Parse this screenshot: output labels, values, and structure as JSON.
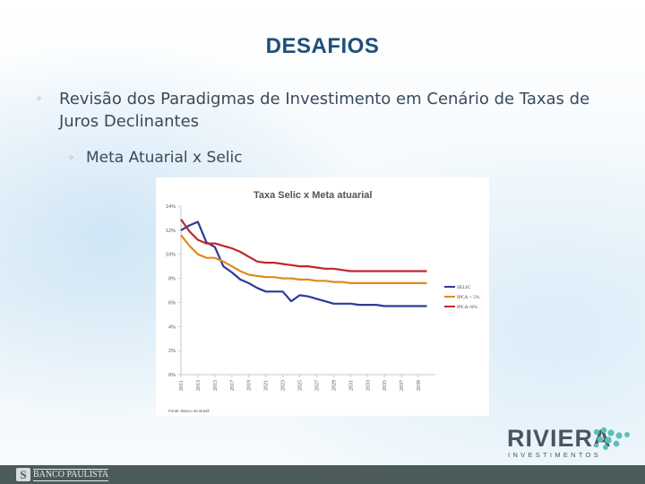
{
  "slide": {
    "title": "DESAFIOS",
    "bullet1": "Revisão dos Paradigmas de Investimento em Cenário de Taxas de Juros Declinantes",
    "bullet2": "Meta Atuarial x Selic",
    "bullet_symbol": "◦"
  },
  "logo": {
    "name": "RIVIERA",
    "sub": "INVESTIMENTOS"
  },
  "footer": {
    "bank_name": "BANCO PAULISTA",
    "mark": "S"
  },
  "colors": {
    "title": "#1f4e79",
    "selic": "#2b3a9a",
    "ipca5": "#e08a1e",
    "ipca6": "#c0282a",
    "dots": "#5fbfb5",
    "footer_bar": "#4b5a5a"
  },
  "chart_data": {
    "type": "line",
    "title": "Taxa Selic x Meta atuarial",
    "source": "Fonte: Banco do Brasil",
    "xlabel": "",
    "ylabel": "",
    "ylim": [
      0,
      14
    ],
    "xlim": [
      2011,
      2041
    ],
    "y_ticks": [
      "0%",
      "2%",
      "4%",
      "6%",
      "8%",
      "10%",
      "12%",
      "14%"
    ],
    "x_ticks": [
      "2011",
      "2013",
      "2015",
      "2017",
      "2019",
      "2021",
      "2023",
      "2025",
      "2027",
      "2029",
      "2031",
      "2033",
      "2035",
      "2037",
      "2039"
    ],
    "grid": false,
    "legend": "right",
    "series": [
      {
        "name": "SELIC",
        "color": "#2b3a9a",
        "x": [
          2011,
          2012,
          2013,
          2014,
          2015,
          2016,
          2017,
          2018,
          2019,
          2020,
          2021,
          2022,
          2023,
          2024,
          2025,
          2026,
          2027,
          2028,
          2029,
          2030,
          2031,
          2032,
          2033,
          2034,
          2035,
          2036,
          2037,
          2038,
          2039,
          2040
        ],
        "y": [
          12.0,
          12.4,
          12.7,
          11.0,
          10.6,
          9.0,
          8.5,
          7.9,
          7.6,
          7.2,
          6.9,
          6.9,
          6.9,
          6.1,
          6.6,
          6.5,
          6.3,
          6.1,
          5.9,
          5.9,
          5.9,
          5.8,
          5.8,
          5.8,
          5.7,
          5.7,
          5.7,
          5.7,
          5.7,
          5.7
        ]
      },
      {
        "name": "IPCA + 5%",
        "color": "#e08a1e",
        "x": [
          2011,
          2012,
          2013,
          2014,
          2015,
          2016,
          2017,
          2018,
          2019,
          2020,
          2021,
          2022,
          2023,
          2024,
          2025,
          2026,
          2027,
          2028,
          2029,
          2030,
          2031,
          2032,
          2033,
          2034,
          2035,
          2036,
          2037,
          2038,
          2039,
          2040
        ],
        "y": [
          11.6,
          10.7,
          10.0,
          9.7,
          9.7,
          9.4,
          9.0,
          8.6,
          8.3,
          8.2,
          8.1,
          8.1,
          8.0,
          8.0,
          7.9,
          7.9,
          7.8,
          7.8,
          7.7,
          7.7,
          7.6,
          7.6,
          7.6,
          7.6,
          7.6,
          7.6,
          7.6,
          7.6,
          7.6,
          7.6
        ]
      },
      {
        "name": "IPCA+6%",
        "color": "#c0282a",
        "x": [
          2011,
          2012,
          2013,
          2014,
          2015,
          2016,
          2017,
          2018,
          2019,
          2020,
          2021,
          2022,
          2023,
          2024,
          2025,
          2026,
          2027,
          2028,
          2029,
          2030,
          2031,
          2032,
          2033,
          2034,
          2035,
          2036,
          2037,
          2038,
          2039,
          2040
        ],
        "y": [
          12.9,
          11.9,
          11.2,
          10.9,
          10.9,
          10.7,
          10.5,
          10.2,
          9.8,
          9.4,
          9.3,
          9.3,
          9.2,
          9.1,
          9.0,
          9.0,
          8.9,
          8.8,
          8.8,
          8.7,
          8.6,
          8.6,
          8.6,
          8.6,
          8.6,
          8.6,
          8.6,
          8.6,
          8.6,
          8.6
        ]
      }
    ]
  }
}
